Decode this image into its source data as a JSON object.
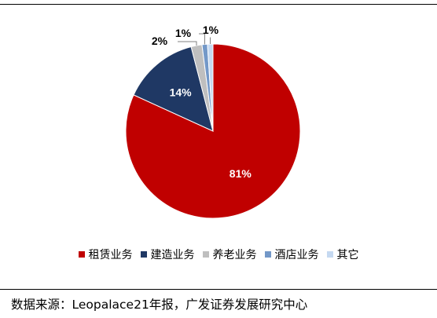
{
  "chart_data": {
    "type": "pie",
    "title": "",
    "categories": [
      "租赁业务",
      "建造业务",
      "养老业务",
      "酒店业务",
      "其它"
    ],
    "values": [
      81,
      14,
      2,
      1,
      1
    ],
    "labels": [
      "81%",
      "14%",
      "2%",
      "1%",
      "1%"
    ],
    "colors": [
      "#C00000",
      "#1F3864",
      "#BFBFBF",
      "#7398C8",
      "#C5D9F1"
    ],
    "legend_position": "bottom"
  },
  "source": "数据来源：Leopalace21年报，广发证券发展研究中心"
}
